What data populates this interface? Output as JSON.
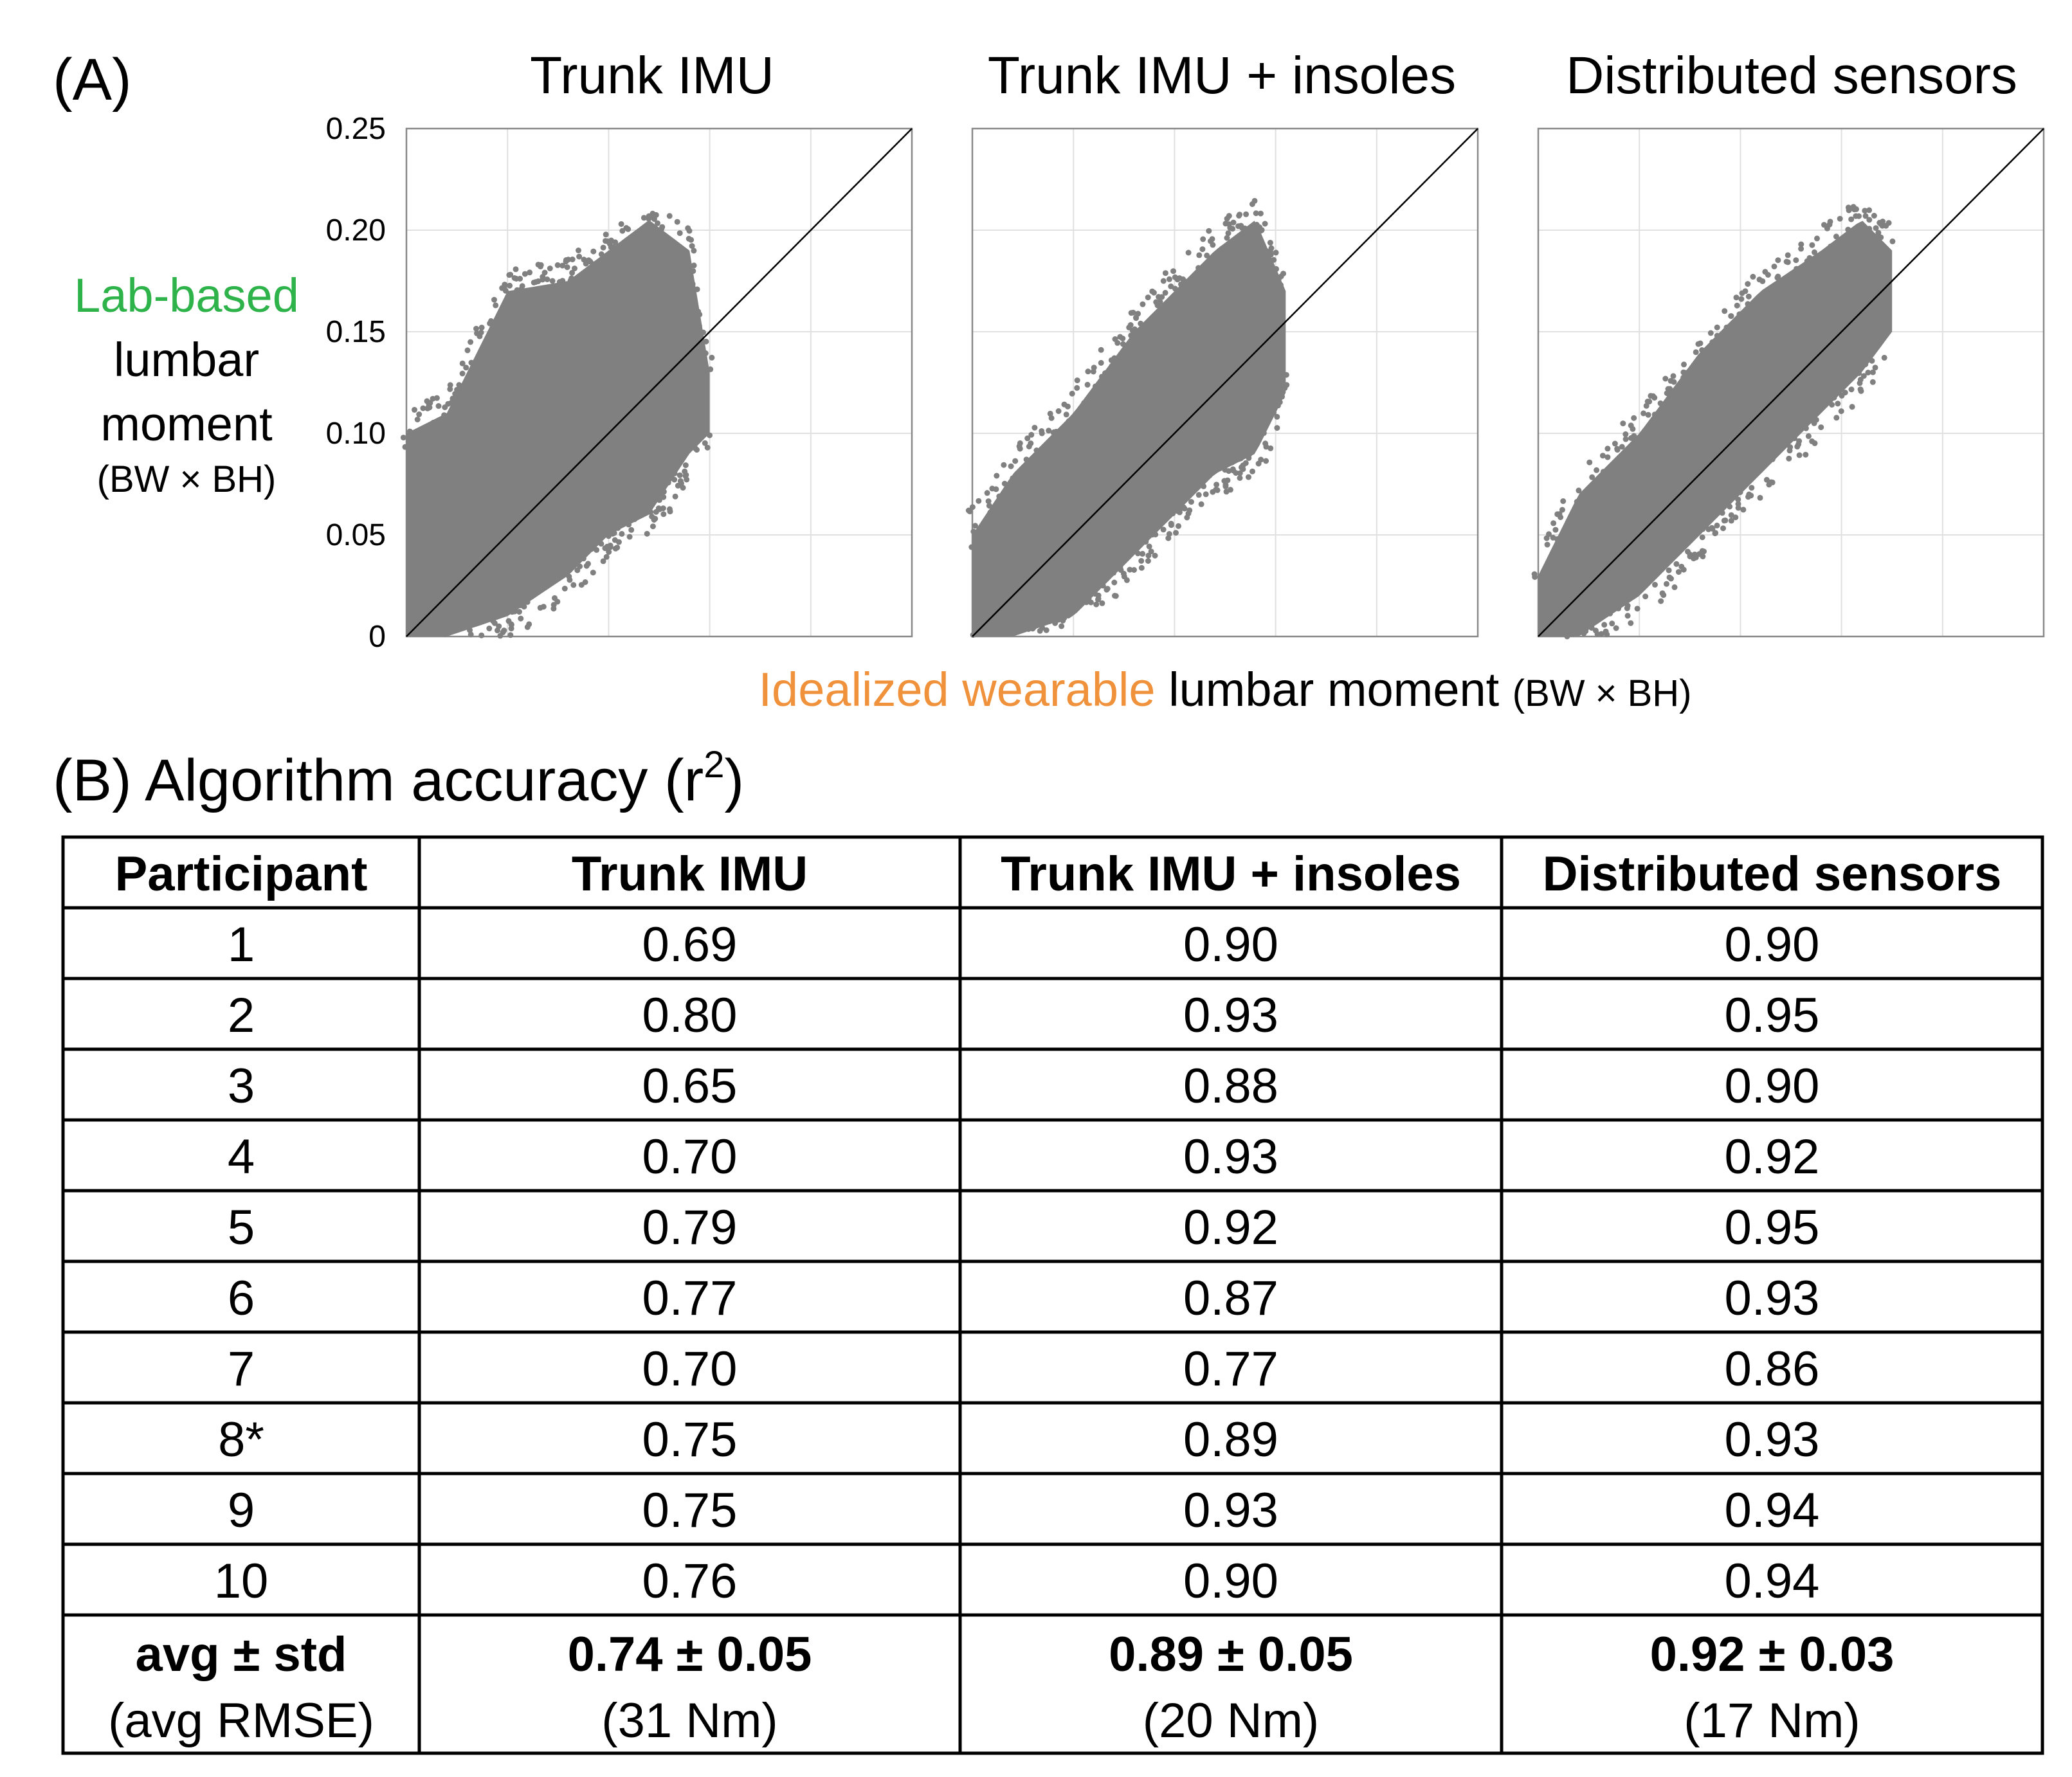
{
  "panel_a": {
    "label": "(A)"
  },
  "panel_b": {
    "label": "(B)",
    "title_text": " Algorithm accuracy (r",
    "title_superscript": "2",
    "title_close": ")"
  },
  "y_axis": {
    "line1": "Lab-based",
    "line2": "lumbar",
    "line3": "moment",
    "unit": "(BW × BH)",
    "tick_labels": [
      "0",
      "0.05",
      "0.10",
      "0.15",
      "0.20",
      "0.25"
    ],
    "colors": {
      "highlight": "#2db34a"
    }
  },
  "x_axis": {
    "highlight": "Idealized wearable",
    "rest": " lumbar moment ",
    "unit": "(BW × BH)",
    "colors": {
      "highlight": "#f0923b"
    }
  },
  "colors": {
    "points": "#808080",
    "grid": "#e0e0e0",
    "axes": "#888888",
    "identity_line": "#000000"
  },
  "chart_data": [
    {
      "type": "scatter",
      "title": "Trunk IMU",
      "xlim": [
        0,
        0.25
      ],
      "ylim": [
        0,
        0.25
      ],
      "yticks": [
        0,
        0.05,
        0.1,
        0.15,
        0.2,
        0.25
      ],
      "grid": true,
      "identity_line": true,
      "point_cloud": {
        "x_range": [
          0,
          0.15
        ],
        "y_range": [
          0,
          0.205
        ],
        "description_free": true
      },
      "envelope": {
        "x": [
          0,
          0.02,
          0.05,
          0.08,
          0.1,
          0.12,
          0.14,
          0.15
        ],
        "y_low": [
          0,
          0.0,
          0.01,
          0.03,
          0.05,
          0.06,
          0.09,
          0.1
        ],
        "y_high": [
          0.1,
          0.11,
          0.17,
          0.175,
          0.19,
          0.205,
          0.19,
          0.13
        ]
      }
    },
    {
      "type": "scatter",
      "title": "Trunk IMU + insoles",
      "xlim": [
        0,
        0.25
      ],
      "ylim": [
        0,
        0.25
      ],
      "grid": true,
      "identity_line": true,
      "envelope": {
        "x": [
          0,
          0.02,
          0.05,
          0.08,
          0.1,
          0.12,
          0.14,
          0.155
        ],
        "y_low": [
          0,
          0.0,
          0.01,
          0.04,
          0.06,
          0.08,
          0.09,
          0.12
        ],
        "y_high": [
          0.05,
          0.08,
          0.11,
          0.15,
          0.17,
          0.19,
          0.205,
          0.17
        ]
      }
    },
    {
      "type": "scatter",
      "title": "Distributed sensors",
      "xlim": [
        0,
        0.25
      ],
      "ylim": [
        0,
        0.25
      ],
      "grid": true,
      "identity_line": true,
      "envelope": {
        "x": [
          0,
          0.02,
          0.05,
          0.08,
          0.11,
          0.14,
          0.16,
          0.175
        ],
        "y_low": [
          0,
          0.0,
          0.02,
          0.05,
          0.08,
          0.11,
          0.13,
          0.15
        ],
        "y_high": [
          0.03,
          0.07,
          0.1,
          0.14,
          0.17,
          0.19,
          0.205,
          0.19
        ]
      }
    },
    {
      "type": "table",
      "headers": [
        "Participant",
        "Trunk IMU",
        "Trunk IMU + insoles",
        "Distributed sensors"
      ],
      "rows": [
        [
          "1",
          "0.69",
          "0.90",
          "0.90"
        ],
        [
          "2",
          "0.80",
          "0.93",
          "0.95"
        ],
        [
          "3",
          "0.65",
          "0.88",
          "0.90"
        ],
        [
          "4",
          "0.70",
          "0.93",
          "0.92"
        ],
        [
          "5",
          "0.79",
          "0.92",
          "0.95"
        ],
        [
          "6",
          "0.77",
          "0.87",
          "0.93"
        ],
        [
          "7",
          "0.70",
          "0.77",
          "0.86"
        ],
        [
          "8*",
          "0.75",
          "0.89",
          "0.93"
        ],
        [
          "9",
          "0.75",
          "0.93",
          "0.94"
        ],
        [
          "10",
          "0.76",
          "0.90",
          "0.94"
        ]
      ],
      "summary": {
        "label_bold": "avg ± std",
        "label_sub": "(avg RMSE)",
        "values_bold": [
          "0.74 ± 0.05",
          "0.89 ± 0.05",
          "0.92 ± 0.03"
        ],
        "values_sub": [
          "(31 Nm)",
          "(20 Nm)",
          "(17 Nm)"
        ]
      }
    }
  ]
}
